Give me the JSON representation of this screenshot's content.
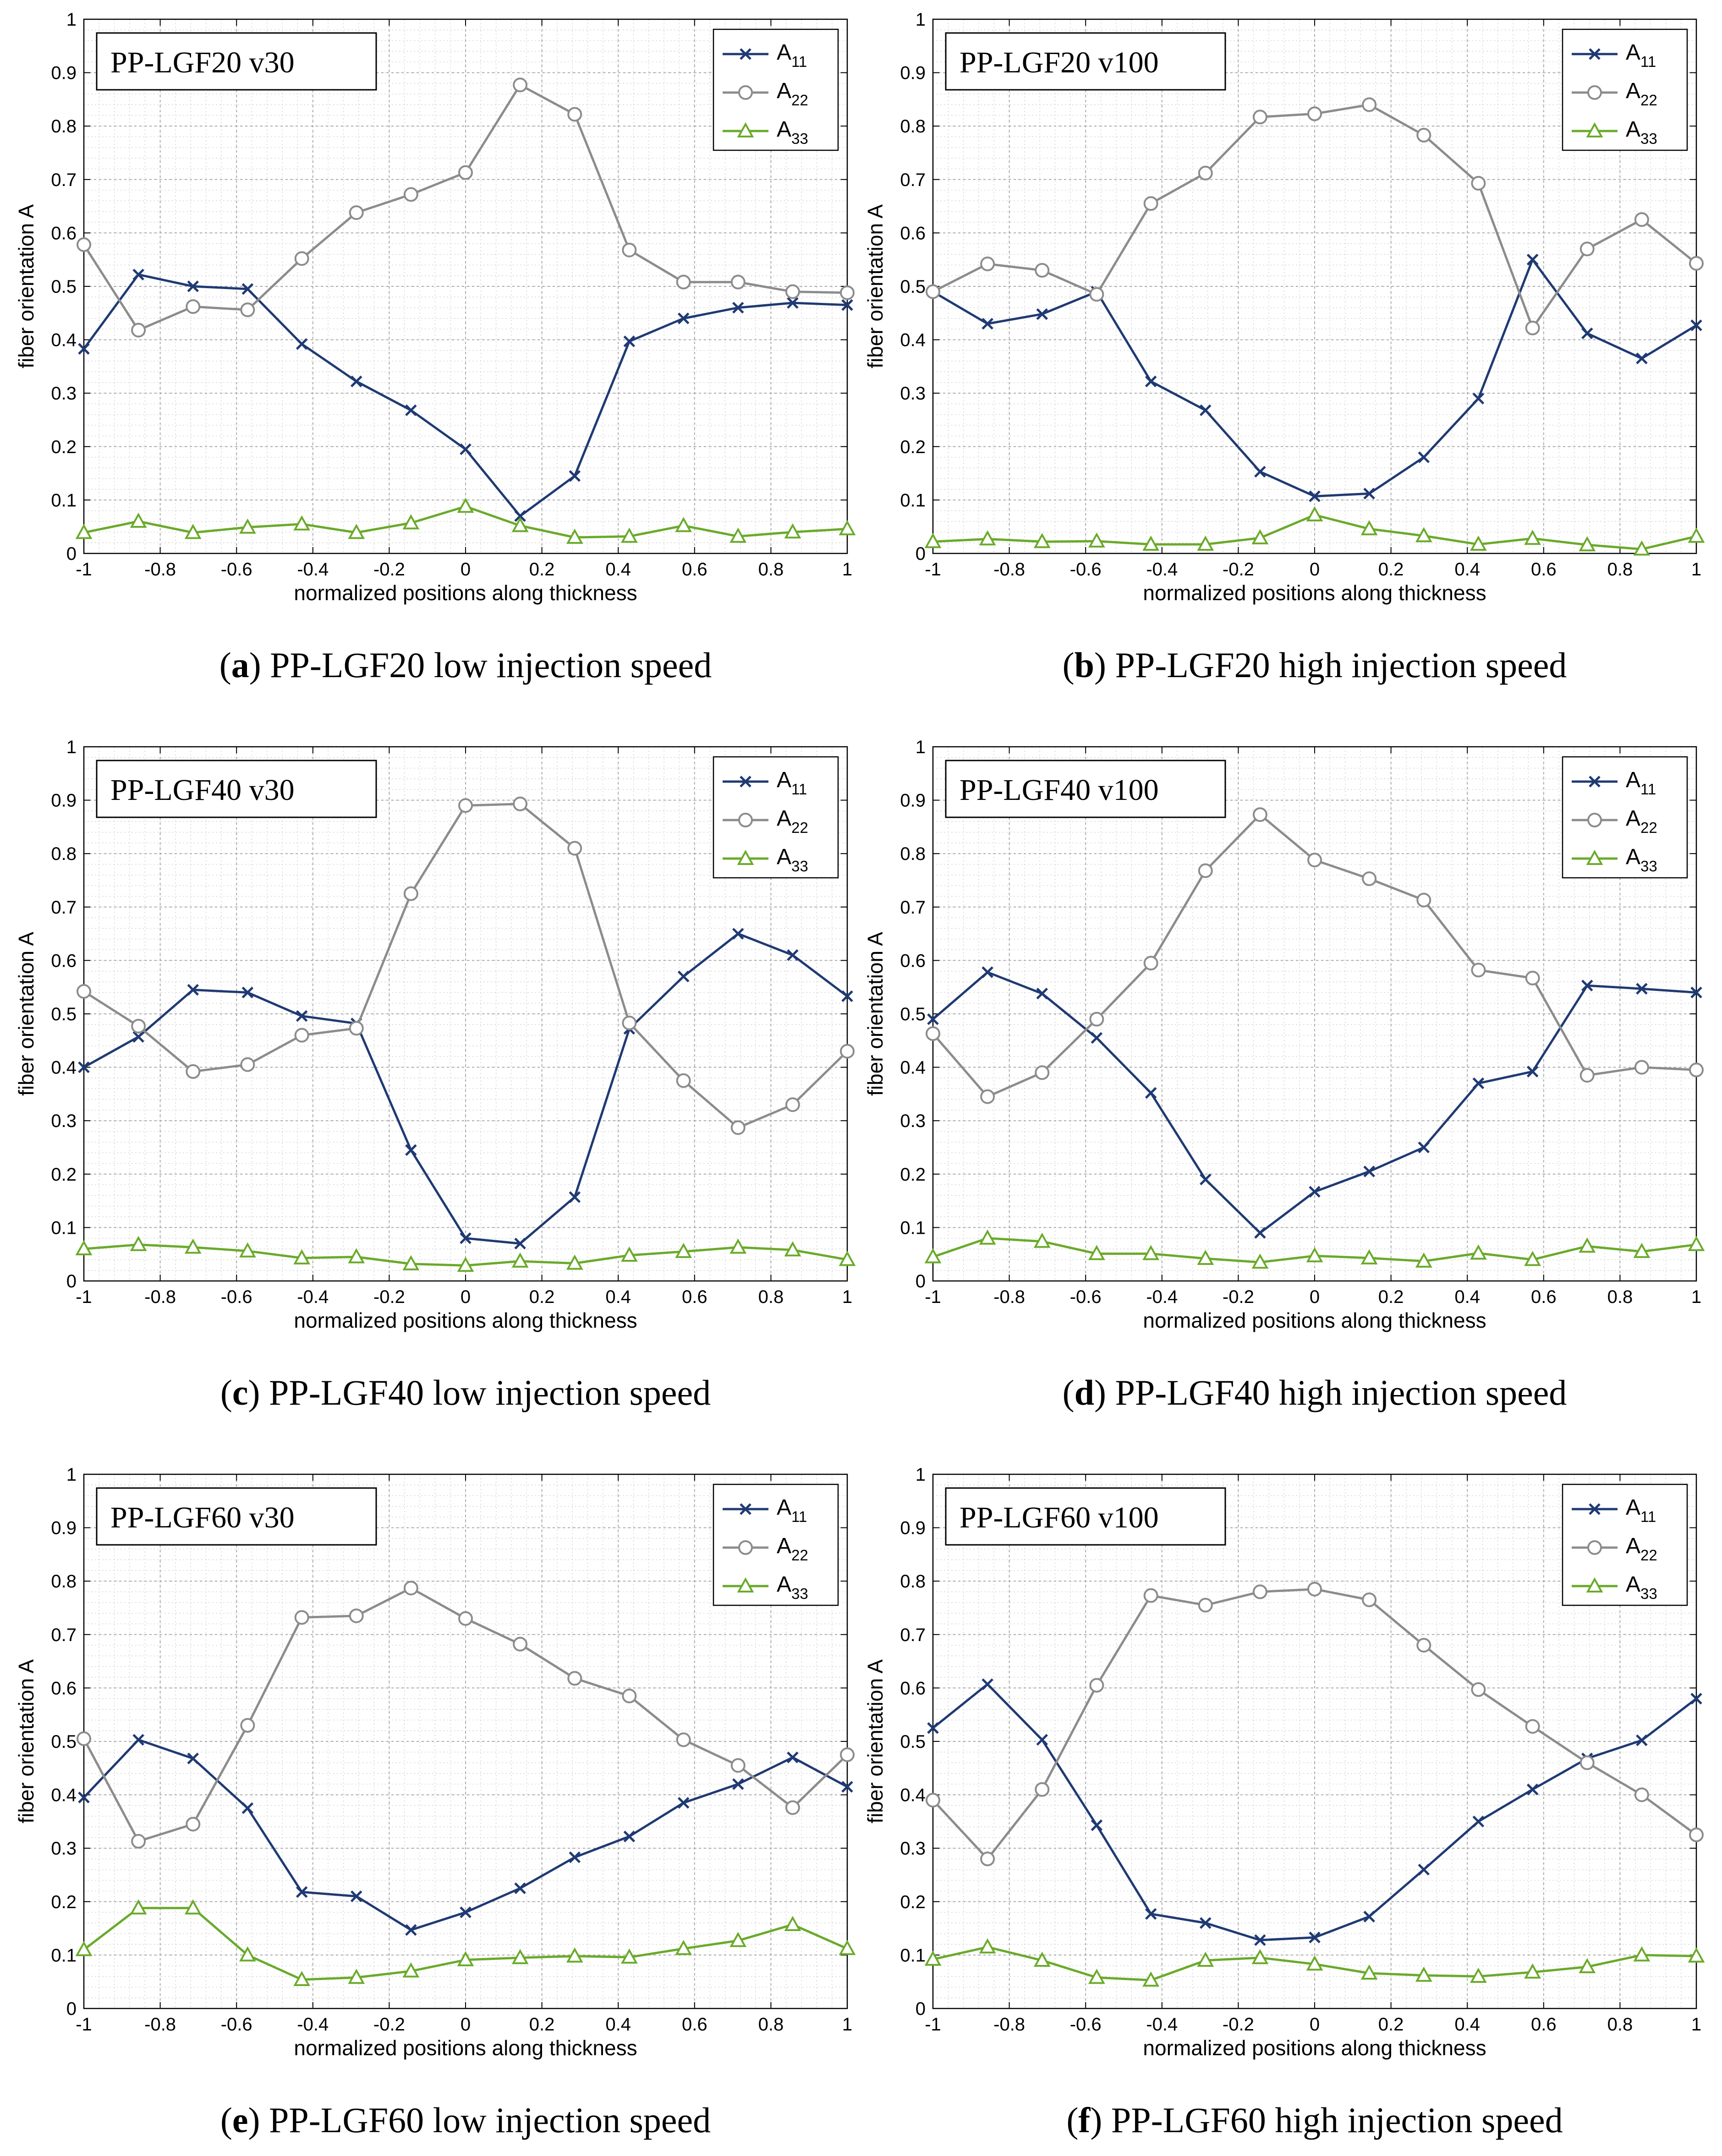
{
  "series_style": {
    "A11": {
      "color": "#1f3a73",
      "marker": "x"
    },
    "A22": {
      "color": "#8c8c8c",
      "marker": "circle"
    },
    "A33": {
      "color": "#6aaa2a",
      "marker": "triangle"
    }
  },
  "chart_data": [
    {
      "type": "line",
      "panel_letter": "a",
      "caption": "PP-LGF20 low injection speed",
      "box_label": "PP-LGF20 v30",
      "xlabel": "normalized positions along thickness",
      "ylabel": "fiber orientation A",
      "xlim": [
        -1,
        1
      ],
      "ylim": [
        0,
        1
      ],
      "xticks": [
        "-1",
        "-0.8",
        "-0.6",
        "-0.4",
        "-0.2",
        "0",
        "0.2",
        "0.4",
        "0.6",
        "0.8",
        "1"
      ],
      "yticks": [
        "0",
        "0.1",
        "0.2",
        "0.3",
        "0.4",
        "0.5",
        "0.6",
        "0.7",
        "0.8",
        "0.9",
        "1"
      ],
      "grid": true,
      "legend_position": "top-right",
      "x": [
        -1,
        -0.857,
        -0.714,
        -0.571,
        -0.429,
        -0.286,
        -0.143,
        0,
        0.143,
        0.286,
        0.429,
        0.571,
        0.714,
        0.857,
        1
      ],
      "series": [
        {
          "key": "A11",
          "name": "A",
          "sub": "11",
          "values": [
            0.383,
            0.522,
            0.5,
            0.495,
            0.392,
            0.322,
            0.268,
            0.195,
            0.07,
            0.145,
            0.397,
            0.44,
            0.46,
            0.469,
            0.465
          ]
        },
        {
          "key": "A22",
          "name": "A",
          "sub": "22",
          "values": [
            0.578,
            0.418,
            0.462,
            0.456,
            0.552,
            0.638,
            0.672,
            0.713,
            0.877,
            0.822,
            0.568,
            0.508,
            0.508,
            0.49,
            0.488
          ]
        },
        {
          "key": "A33",
          "name": "A",
          "sub": "33",
          "values": [
            0.039,
            0.06,
            0.039,
            0.049,
            0.055,
            0.039,
            0.057,
            0.088,
            0.052,
            0.03,
            0.032,
            0.052,
            0.032,
            0.04,
            0.046
          ]
        }
      ]
    },
    {
      "type": "line",
      "panel_letter": "b",
      "caption": "PP-LGF20 high injection speed",
      "box_label": "PP-LGF20 v100",
      "xlabel": "normalized positions along thickness",
      "ylabel": "fiber orientation A",
      "xlim": [
        -1,
        1
      ],
      "ylim": [
        0,
        1
      ],
      "xticks": [
        "-1",
        "-0.8",
        "-0.6",
        "-0.4",
        "-0.2",
        "0",
        "0.2",
        "0.4",
        "0.6",
        "0.8",
        "1"
      ],
      "yticks": [
        "0",
        "0.1",
        "0.2",
        "0.3",
        "0.4",
        "0.5",
        "0.6",
        "0.7",
        "0.8",
        "0.9",
        "1"
      ],
      "grid": true,
      "legend_position": "top-right",
      "x": [
        -1,
        -0.857,
        -0.714,
        -0.571,
        -0.429,
        -0.286,
        -0.143,
        0,
        0.143,
        0.286,
        0.429,
        0.571,
        0.714,
        0.857,
        1
      ],
      "series": [
        {
          "key": "A11",
          "name": "A",
          "sub": "11",
          "values": [
            0.49,
            0.43,
            0.448,
            0.49,
            0.322,
            0.268,
            0.153,
            0.107,
            0.112,
            0.18,
            0.29,
            0.55,
            0.412,
            0.365,
            0.427
          ]
        },
        {
          "key": "A22",
          "name": "A",
          "sub": "22",
          "values": [
            0.49,
            0.542,
            0.53,
            0.485,
            0.655,
            0.712,
            0.817,
            0.823,
            0.84,
            0.783,
            0.693,
            0.422,
            0.57,
            0.625,
            0.543
          ]
        },
        {
          "key": "A33",
          "name": "A",
          "sub": "33",
          "values": [
            0.022,
            0.027,
            0.022,
            0.023,
            0.017,
            0.017,
            0.029,
            0.072,
            0.046,
            0.033,
            0.017,
            0.028,
            0.016,
            0.008,
            0.032
          ]
        }
      ]
    },
    {
      "type": "line",
      "panel_letter": "c",
      "caption": "PP-LGF40 low injection speed",
      "box_label": "PP-LGF40 v30",
      "xlabel": "normalized positions along thickness",
      "ylabel": "fiber orientation A",
      "xlim": [
        -1,
        1
      ],
      "ylim": [
        0,
        1
      ],
      "xticks": [
        "-1",
        "-0.8",
        "-0.6",
        "-0.4",
        "-0.2",
        "0",
        "0.2",
        "0.4",
        "0.6",
        "0.8",
        "1"
      ],
      "yticks": [
        "0",
        "0.1",
        "0.2",
        "0.3",
        "0.4",
        "0.5",
        "0.6",
        "0.7",
        "0.8",
        "0.9",
        "1"
      ],
      "grid": true,
      "legend_position": "top-right",
      "x": [
        -1,
        -0.857,
        -0.714,
        -0.571,
        -0.429,
        -0.286,
        -0.143,
        0,
        0.143,
        0.286,
        0.429,
        0.571,
        0.714,
        0.857,
        1
      ],
      "series": [
        {
          "key": "A11",
          "name": "A",
          "sub": "11",
          "values": [
            0.4,
            0.457,
            0.545,
            0.54,
            0.496,
            0.482,
            0.245,
            0.08,
            0.07,
            0.157,
            0.472,
            0.57,
            0.65,
            0.61,
            0.533
          ]
        },
        {
          "key": "A22",
          "name": "A",
          "sub": "22",
          "values": [
            0.542,
            0.477,
            0.392,
            0.405,
            0.46,
            0.473,
            0.725,
            0.89,
            0.893,
            0.81,
            0.483,
            0.375,
            0.287,
            0.33,
            0.43
          ]
        },
        {
          "key": "A33",
          "name": "A",
          "sub": "33",
          "values": [
            0.06,
            0.068,
            0.063,
            0.056,
            0.043,
            0.045,
            0.032,
            0.029,
            0.037,
            0.033,
            0.048,
            0.055,
            0.063,
            0.058,
            0.04
          ]
        }
      ]
    },
    {
      "type": "line",
      "panel_letter": "d",
      "caption": "PP-LGF40 high injection speed",
      "box_label": "PP-LGF40 v100",
      "xlabel": "normalized positions along thickness",
      "ylabel": "fiber orientation A",
      "xlim": [
        -1,
        1
      ],
      "ylim": [
        0,
        1
      ],
      "xticks": [
        "-1",
        "-0.8",
        "-0.6",
        "-0.4",
        "-0.2",
        "0",
        "0.2",
        "0.4",
        "0.6",
        "0.8",
        "1"
      ],
      "yticks": [
        "0",
        "0.1",
        "0.2",
        "0.3",
        "0.4",
        "0.5",
        "0.6",
        "0.7",
        "0.8",
        "0.9",
        "1"
      ],
      "grid": true,
      "legend_position": "top-right",
      "x": [
        -1,
        -0.857,
        -0.714,
        -0.571,
        -0.429,
        -0.286,
        -0.143,
        0,
        0.143,
        0.286,
        0.429,
        0.571,
        0.714,
        0.857,
        1
      ],
      "series": [
        {
          "key": "A11",
          "name": "A",
          "sub": "11",
          "values": [
            0.49,
            0.578,
            0.538,
            0.455,
            0.352,
            0.19,
            0.09,
            0.167,
            0.205,
            0.25,
            0.37,
            0.392,
            0.553,
            0.547,
            0.54
          ]
        },
        {
          "key": "A22",
          "name": "A",
          "sub": "22",
          "values": [
            0.463,
            0.345,
            0.39,
            0.49,
            0.595,
            0.768,
            0.873,
            0.788,
            0.753,
            0.713,
            0.582,
            0.567,
            0.385,
            0.4,
            0.395
          ]
        },
        {
          "key": "A33",
          "name": "A",
          "sub": "33",
          "values": [
            0.045,
            0.08,
            0.074,
            0.051,
            0.051,
            0.042,
            0.035,
            0.047,
            0.043,
            0.037,
            0.052,
            0.04,
            0.065,
            0.055,
            0.068
          ]
        }
      ]
    },
    {
      "type": "line",
      "panel_letter": "e",
      "caption": "PP-LGF60 low injection speed",
      "box_label": "PP-LGF60 v30",
      "xlabel": "normalized positions along thickness",
      "ylabel": "fiber orientation A",
      "xlim": [
        -1,
        1
      ],
      "ylim": [
        0,
        1
      ],
      "xticks": [
        "-1",
        "-0.8",
        "-0.6",
        "-0.4",
        "-0.2",
        "0",
        "0.2",
        "0.4",
        "0.6",
        "0.8",
        "1"
      ],
      "yticks": [
        "0",
        "0.1",
        "0.2",
        "0.3",
        "0.4",
        "0.5",
        "0.6",
        "0.7",
        "0.8",
        "0.9",
        "1"
      ],
      "grid": true,
      "legend_position": "top-right",
      "x": [
        -1,
        -0.857,
        -0.714,
        -0.571,
        -0.429,
        -0.286,
        -0.143,
        0,
        0.143,
        0.286,
        0.429,
        0.571,
        0.714,
        0.857,
        1
      ],
      "series": [
        {
          "key": "A11",
          "name": "A",
          "sub": "11",
          "values": [
            0.395,
            0.503,
            0.468,
            0.375,
            0.218,
            0.21,
            0.147,
            0.18,
            0.225,
            0.283,
            0.322,
            0.385,
            0.42,
            0.47,
            0.415
          ]
        },
        {
          "key": "A22",
          "name": "A",
          "sub": "22",
          "values": [
            0.505,
            0.313,
            0.345,
            0.53,
            0.732,
            0.735,
            0.787,
            0.73,
            0.682,
            0.618,
            0.585,
            0.503,
            0.455,
            0.376,
            0.475
          ]
        },
        {
          "key": "A33",
          "name": "A",
          "sub": "33",
          "values": [
            0.11,
            0.188,
            0.188,
            0.1,
            0.054,
            0.058,
            0.07,
            0.091,
            0.095,
            0.098,
            0.096,
            0.112,
            0.127,
            0.157,
            0.112
          ]
        }
      ]
    },
    {
      "type": "line",
      "panel_letter": "f",
      "caption": "PP-LGF60 high injection speed",
      "box_label": "PP-LGF60 v100",
      "xlabel": "normalized positions along thickness",
      "ylabel": "fiber orientation A",
      "xlim": [
        -1,
        1
      ],
      "ylim": [
        0,
        1
      ],
      "xticks": [
        "-1",
        "-0.8",
        "-0.6",
        "-0.4",
        "-0.2",
        "0",
        "0.2",
        "0.4",
        "0.6",
        "0.8",
        "1"
      ],
      "yticks": [
        "0",
        "0.1",
        "0.2",
        "0.3",
        "0.4",
        "0.5",
        "0.6",
        "0.7",
        "0.8",
        "0.9",
        "1"
      ],
      "grid": true,
      "legend_position": "top-right",
      "x": [
        -1,
        -0.857,
        -0.714,
        -0.571,
        -0.429,
        -0.286,
        -0.143,
        0,
        0.143,
        0.286,
        0.429,
        0.571,
        0.714,
        0.857,
        1
      ],
      "series": [
        {
          "key": "A11",
          "name": "A",
          "sub": "11",
          "values": [
            0.525,
            0.607,
            0.503,
            0.343,
            0.177,
            0.16,
            0.128,
            0.133,
            0.172,
            0.26,
            0.35,
            0.41,
            0.468,
            0.502,
            0.58
          ]
        },
        {
          "key": "A22",
          "name": "A",
          "sub": "22",
          "values": [
            0.39,
            0.28,
            0.41,
            0.605,
            0.773,
            0.755,
            0.78,
            0.785,
            0.765,
            0.68,
            0.597,
            0.528,
            0.46,
            0.4,
            0.325
          ]
        },
        {
          "key": "A33",
          "name": "A",
          "sub": "33",
          "values": [
            0.092,
            0.115,
            0.09,
            0.058,
            0.053,
            0.09,
            0.095,
            0.083,
            0.066,
            0.062,
            0.06,
            0.068,
            0.078,
            0.1,
            0.098
          ]
        }
      ]
    }
  ]
}
